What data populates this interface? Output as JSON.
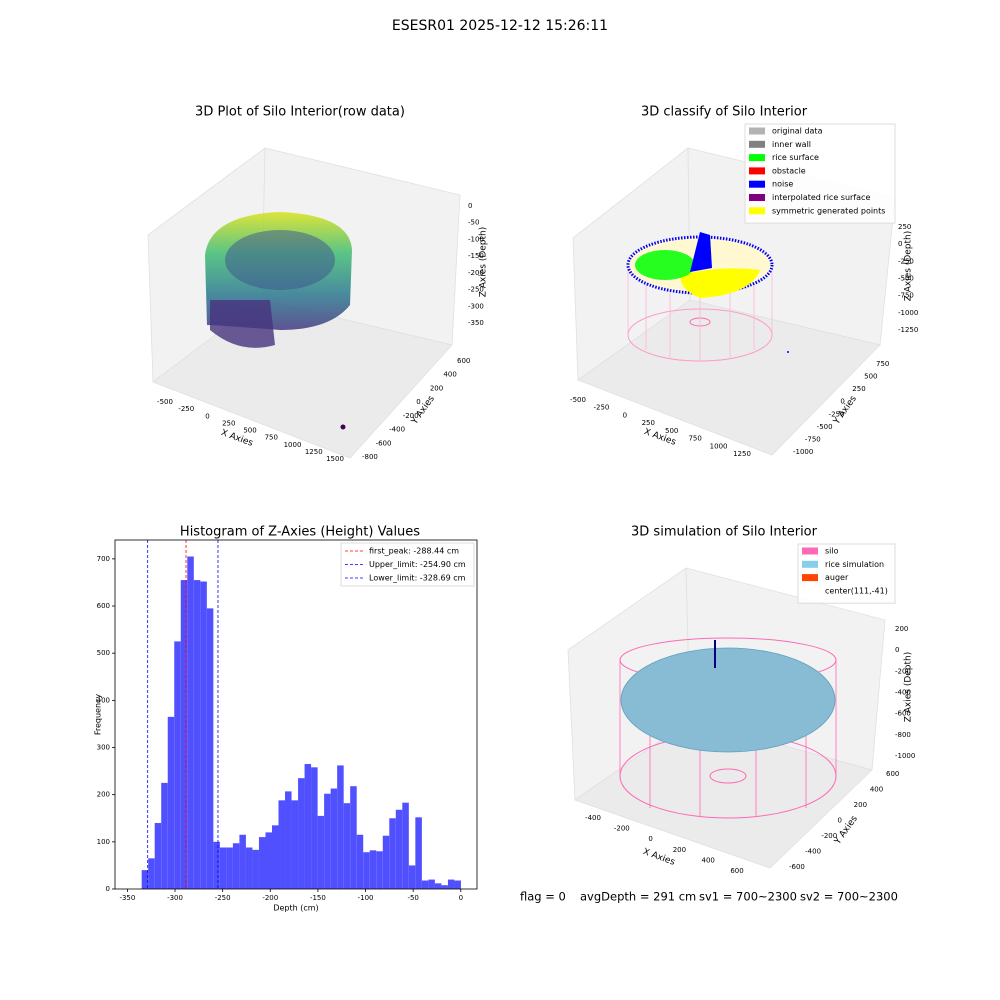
{
  "title": "ESESR01 2025-12-12 15:26:11",
  "chart_data": [
    {
      "type": "scatter3d",
      "title": "3D Plot of Silo Interior(row data)",
      "xlabel": "X Axies",
      "ylabel": "Y Axies",
      "zlabel": "Z Axies (Depth)",
      "xticks": [
        -500,
        -250,
        0,
        250,
        500,
        750,
        1000,
        1250,
        1500
      ],
      "yticks": [
        -800,
        -600,
        -400,
        -200,
        0,
        200,
        400,
        600
      ],
      "zticks": [
        0,
        -50,
        -100,
        -150,
        -200,
        -250,
        -300,
        -350
      ]
    },
    {
      "type": "scatter3d",
      "title": "3D classify of Silo Interior",
      "xlabel": "X Axies",
      "ylabel": "Y Axies",
      "zlabel": "Z Axies (Depth)",
      "xticks": [
        -500,
        -250,
        0,
        250,
        500,
        750,
        1000,
        1250
      ],
      "yticks": [
        -1000,
        -750,
        -500,
        -250,
        0,
        250,
        500,
        750
      ],
      "zticks": [
        250,
        0,
        -250,
        -500,
        -750,
        -1000,
        -1250
      ],
      "legend": [
        {
          "name": "original data",
          "color": "#b3b3b3"
        },
        {
          "name": "inner wall",
          "color": "#808080"
        },
        {
          "name": "rice surface",
          "color": "#00ff00"
        },
        {
          "name": "obstacle",
          "color": "#ff0000"
        },
        {
          "name": "noise",
          "color": "#0000ff"
        },
        {
          "name": "interpolated rice surface",
          "color": "#800080"
        },
        {
          "name": "symmetric generated points",
          "color": "#ffff00"
        }
      ]
    },
    {
      "type": "histogram",
      "title": "Histogram of Z-Axies (Height) Values",
      "xlabel": "Depth (cm)",
      "ylabel": "Frequency",
      "color": "#5050ff",
      "bins": [
        -335,
        -328.16,
        -321.32,
        -314.48,
        -307.64,
        -300.8,
        -293.96,
        -287.12,
        -280.28,
        -273.44,
        -266.6,
        -259.76,
        -252.92,
        -246.08,
        -239.24,
        -232.4,
        -225.56,
        -218.72,
        -211.88,
        -205.04,
        -198.2,
        -191.36,
        -184.52,
        -177.68,
        -170.84,
        -164,
        -157.16,
        -150.32,
        -143.48,
        -136.64,
        -129.8,
        -122.96,
        -116.12,
        -109.28,
        -102.44,
        -95.6,
        -88.76,
        -81.92,
        -75.08,
        -68.24,
        -61.4,
        -54.56,
        -47.72,
        -40.88,
        -34.04,
        -27.2,
        -20.36,
        -13.52,
        -6.68,
        0.16
      ],
      "values": [
        40,
        65,
        140,
        225,
        365,
        525,
        655,
        705,
        655,
        652,
        595,
        100,
        88,
        88,
        97,
        115,
        88,
        83,
        110,
        120,
        135,
        188,
        207,
        188,
        235,
        265,
        258,
        155,
        202,
        213,
        262,
        182,
        218,
        115,
        78,
        82,
        80,
        113,
        150,
        168,
        183,
        50,
        152,
        18,
        20,
        12,
        8,
        20,
        18
      ],
      "lines": [
        {
          "label": "first_peak: -288.44 cm",
          "value": -288.44,
          "color": "#ff0000"
        },
        {
          "label": "Upper_limit: -254.90 cm",
          "value": -254.9,
          "color": "#0000ff"
        },
        {
          "label": "Lower_limit: -328.69 cm",
          "value": -328.69,
          "color": "#0000ff"
        }
      ],
      "xlim": [
        -363,
        17
      ],
      "ylim": [
        0,
        740
      ],
      "xticks": [
        -350,
        -300,
        -250,
        -200,
        -150,
        -100,
        -50,
        0
      ],
      "yticks": [
        0,
        100,
        200,
        300,
        400,
        500,
        600,
        700
      ]
    },
    {
      "type": "scatter3d",
      "title": "3D simulation of Silo Interior",
      "xlabel": "X Axies",
      "ylabel": "Y Axies",
      "zlabel": "Z Axies (Depth)",
      "xticks": [
        -400,
        -200,
        0,
        200,
        400,
        600
      ],
      "yticks": [
        -600,
        -400,
        -200,
        0,
        200,
        400,
        600
      ],
      "zticks": [
        200,
        0,
        -200,
        -400,
        -600,
        -800,
        -1000
      ],
      "legend": [
        {
          "name": "silo",
          "color": "#ff69b4"
        },
        {
          "name": "rice simulation",
          "color": "#87ceeb"
        },
        {
          "name": "auger",
          "color": "#ff4500"
        },
        {
          "name": "center(111,-41)",
          "color": null
        }
      ]
    }
  ],
  "footer": [
    "flag = 0",
    "avgDepth = 291 cm",
    "sv1 = 700~2300",
    "sv2 = 700~2300"
  ]
}
